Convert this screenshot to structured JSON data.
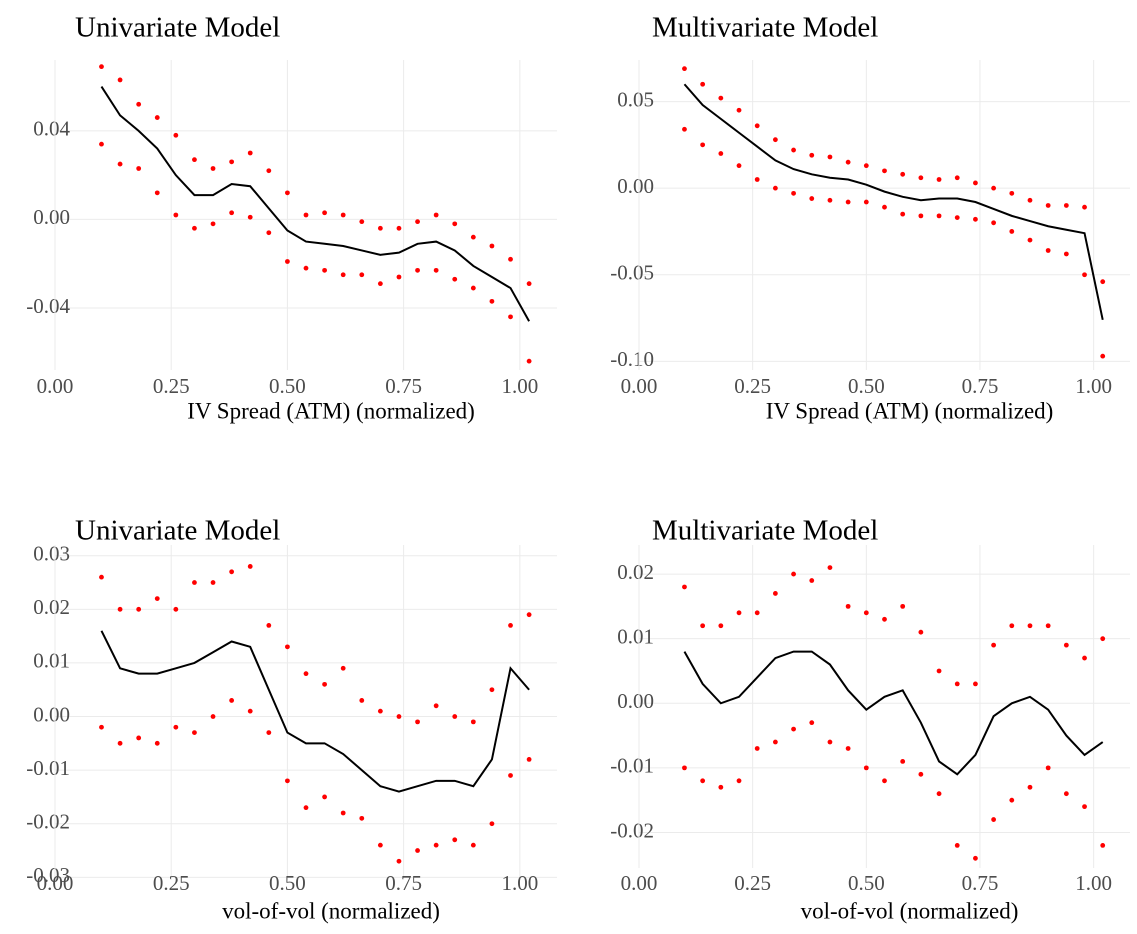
{
  "chart_data": [
    {
      "type": "line",
      "title": "Univariate Model",
      "x_label": "IV Spread (ATM) (normalized)",
      "x": [
        0.1,
        0.14,
        0.18,
        0.22,
        0.26,
        0.3,
        0.34,
        0.38,
        0.42,
        0.46,
        0.5,
        0.54,
        0.58,
        0.62,
        0.66,
        0.7,
        0.74,
        0.78,
        0.82,
        0.86,
        0.9,
        0.94,
        0.98,
        1.02
      ],
      "series": [
        {
          "mark": "line",
          "color": "#000000",
          "values": [
            0.06,
            0.047,
            0.04,
            0.032,
            0.02,
            0.011,
            0.011,
            0.016,
            0.015,
            0.005,
            -0.005,
            -0.01,
            -0.011,
            -0.012,
            -0.014,
            -0.016,
            -0.015,
            -0.011,
            -0.01,
            -0.014,
            -0.021,
            -0.026,
            -0.031,
            -0.046
          ]
        },
        {
          "mark": "dot",
          "color": "#ff0000",
          "values": [
            0.069,
            0.063,
            0.052,
            0.046,
            0.038,
            0.027,
            0.023,
            0.026,
            0.03,
            0.022,
            0.012,
            0.002,
            0.003,
            0.002,
            -0.001,
            -0.004,
            -0.004,
            -0.001,
            0.002,
            -0.002,
            -0.008,
            -0.012,
            -0.018,
            -0.029
          ]
        },
        {
          "mark": "dot",
          "color": "#ff0000",
          "values": [
            0.034,
            0.025,
            0.023,
            0.012,
            0.002,
            -0.004,
            -0.002,
            0.003,
            0.001,
            -0.006,
            -0.019,
            -0.022,
            -0.023,
            -0.025,
            -0.025,
            -0.029,
            -0.026,
            -0.023,
            -0.023,
            -0.027,
            -0.031,
            -0.037,
            -0.044,
            -0.064
          ]
        }
      ],
      "xlim": [
        0,
        1.08
      ],
      "ylim": [
        -0.068,
        0.072
      ],
      "xticks": [
        {
          "value": 0,
          "label": "0.00"
        },
        0.25,
        {
          "value": 0.5,
          "label": "0.50"
        },
        0.75,
        {
          "value": 1,
          "label": "1.00"
        }
      ],
      "yticks": [
        -0.04,
        {
          "value": 0,
          "label": "0.00"
        },
        0.04
      ],
      "grid": true
    },
    {
      "type": "line",
      "title": "Multivariate Model",
      "x_label": "IV Spread (ATM) (normalized)",
      "x": [
        0.1,
        0.14,
        0.18,
        0.22,
        0.26,
        0.3,
        0.34,
        0.38,
        0.42,
        0.46,
        0.5,
        0.54,
        0.58,
        0.62,
        0.66,
        0.7,
        0.74,
        0.78,
        0.82,
        0.86,
        0.9,
        0.94,
        0.98,
        1.02
      ],
      "series": [
        {
          "mark": "line",
          "color": "#000000",
          "values": [
            0.06,
            0.048,
            0.04,
            0.032,
            0.024,
            0.016,
            0.011,
            0.008,
            0.006,
            0.005,
            0.002,
            -0.002,
            -0.005,
            -0.007,
            -0.006,
            -0.006,
            -0.008,
            -0.012,
            -0.016,
            -0.019,
            -0.022,
            -0.024,
            -0.026,
            -0.076
          ]
        },
        {
          "mark": "dot",
          "color": "#ff0000",
          "values": [
            0.069,
            0.06,
            0.052,
            0.045,
            0.036,
            0.028,
            0.022,
            0.019,
            0.018,
            0.015,
            0.013,
            0.01,
            0.008,
            0.006,
            0.005,
            0.006,
            0.003,
            0.0,
            -0.003,
            -0.007,
            -0.01,
            -0.01,
            -0.011,
            -0.054
          ]
        },
        {
          "mark": "dot",
          "color": "#ff0000",
          "values": [
            0.034,
            0.025,
            0.02,
            0.013,
            0.005,
            0.0,
            -0.003,
            -0.006,
            -0.007,
            -0.008,
            -0.008,
            -0.011,
            -0.015,
            -0.016,
            -0.016,
            -0.017,
            -0.018,
            -0.02,
            -0.025,
            -0.03,
            -0.036,
            -0.038,
            -0.05,
            -0.097
          ]
        }
      ],
      "xlim": [
        0,
        1.08
      ],
      "ylim": [
        -0.105,
        0.074
      ],
      "xticks": [
        {
          "value": 0,
          "label": "0.00"
        },
        0.25,
        {
          "value": 0.5,
          "label": "0.50"
        },
        0.75,
        {
          "value": 1,
          "label": "1.00"
        }
      ],
      "yticks": [
        {
          "value": -0.1,
          "label": "-0.10"
        },
        -0.05,
        {
          "value": 0,
          "label": "0.00"
        },
        0.05
      ],
      "grid": true
    },
    {
      "type": "line",
      "title": "Univariate Model",
      "x_label": "vol-of-vol (normalized)",
      "x": [
        0.1,
        0.14,
        0.18,
        0.22,
        0.26,
        0.3,
        0.34,
        0.38,
        0.42,
        0.46,
        0.5,
        0.54,
        0.58,
        0.62,
        0.66,
        0.7,
        0.74,
        0.78,
        0.82,
        0.86,
        0.9,
        0.94,
        0.98,
        1.02
      ],
      "series": [
        {
          "mark": "line",
          "color": "#000000",
          "values": [
            0.016,
            0.009,
            0.008,
            0.008,
            0.009,
            0.01,
            0.012,
            0.014,
            0.013,
            0.005,
            -0.003,
            -0.005,
            -0.005,
            -0.007,
            -0.01,
            -0.013,
            -0.014,
            -0.013,
            -0.012,
            -0.012,
            -0.013,
            -0.008,
            0.009,
            0.005
          ]
        },
        {
          "mark": "dot",
          "color": "#ff0000",
          "values": [
            0.026,
            0.02,
            0.02,
            0.022,
            0.02,
            0.025,
            0.025,
            0.027,
            0.028,
            0.017,
            0.013,
            0.008,
            0.006,
            0.009,
            0.003,
            0.001,
            0.0,
            -0.001,
            0.002,
            0.0,
            -0.001,
            0.005,
            0.017,
            0.019
          ]
        },
        {
          "mark": "dot",
          "color": "#ff0000",
          "values": [
            -0.002,
            -0.005,
            -0.004,
            -0.005,
            -0.002,
            -0.003,
            0.0,
            0.003,
            0.001,
            -0.003,
            -0.012,
            -0.017,
            -0.015,
            -0.018,
            -0.019,
            -0.024,
            -0.027,
            -0.025,
            -0.024,
            -0.023,
            -0.024,
            -0.02,
            -0.011,
            -0.008
          ]
        }
      ],
      "xlim": [
        0,
        1.08
      ],
      "ylim": [
        -0.0305,
        0.032
      ],
      "xticks": [
        {
          "value": 0,
          "label": "0.00"
        },
        0.25,
        {
          "value": 0.5,
          "label": "0.50"
        },
        0.75,
        {
          "value": 1,
          "label": "1.00"
        }
      ],
      "yticks": [
        -0.03,
        -0.02,
        -0.01,
        {
          "value": 0,
          "label": "0.00"
        },
        0.01,
        0.02,
        0.03
      ],
      "grid": true
    },
    {
      "type": "line",
      "title": "Multivariate Model",
      "x_label": "vol-of-vol (normalized)",
      "x": [
        0.1,
        0.14,
        0.18,
        0.22,
        0.26,
        0.3,
        0.34,
        0.38,
        0.42,
        0.46,
        0.5,
        0.54,
        0.58,
        0.62,
        0.66,
        0.7,
        0.74,
        0.78,
        0.82,
        0.86,
        0.9,
        0.94,
        0.98,
        1.02
      ],
      "series": [
        {
          "mark": "line",
          "color": "#000000",
          "values": [
            0.008,
            0.003,
            0.0,
            0.001,
            0.004,
            0.007,
            0.008,
            0.008,
            0.006,
            0.002,
            -0.001,
            0.001,
            0.002,
            -0.003,
            -0.009,
            -0.011,
            -0.008,
            -0.002,
            0.0,
            0.001,
            -0.001,
            -0.005,
            -0.008,
            -0.006
          ]
        },
        {
          "mark": "dot",
          "color": "#ff0000",
          "values": [
            0.018,
            0.012,
            0.012,
            0.014,
            0.014,
            0.017,
            0.02,
            0.019,
            0.021,
            0.015,
            0.014,
            0.013,
            0.015,
            0.011,
            0.005,
            0.003,
            0.003,
            0.009,
            0.012,
            0.012,
            0.012,
            0.009,
            0.007,
            0.01
          ]
        },
        {
          "mark": "dot",
          "color": "#ff0000",
          "values": [
            -0.01,
            -0.012,
            -0.013,
            -0.012,
            -0.007,
            -0.006,
            -0.004,
            -0.003,
            -0.006,
            -0.007,
            -0.01,
            -0.012,
            -0.009,
            -0.011,
            -0.014,
            -0.022,
            -0.024,
            -0.018,
            -0.015,
            -0.013,
            -0.01,
            -0.014,
            -0.016,
            -0.022
          ]
        }
      ],
      "xlim": [
        0,
        1.08
      ],
      "ylim": [
        -0.0255,
        0.0245
      ],
      "xticks": [
        {
          "value": 0,
          "label": "0.00"
        },
        0.25,
        {
          "value": 0.5,
          "label": "0.50"
        },
        0.75,
        {
          "value": 1,
          "label": "1.00"
        }
      ],
      "yticks": [
        -0.02,
        -0.01,
        {
          "value": 0,
          "label": "0.00"
        },
        0.01,
        0.02
      ],
      "grid": true
    }
  ]
}
